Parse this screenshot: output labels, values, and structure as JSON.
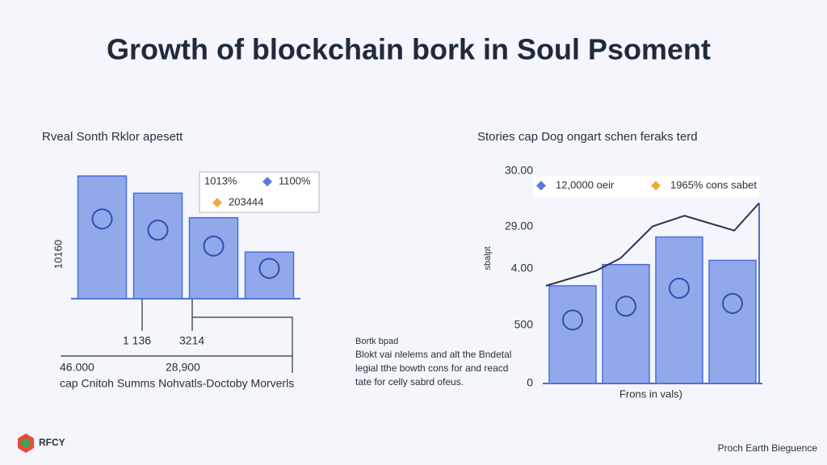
{
  "title": "Growth of blockchain bork in Soul Psoment",
  "logo": "RFCY",
  "footer": "Proch Earth Bieguence",
  "note": {
    "heading": "Bortk bpad",
    "lines": [
      "Blokt vai nlelems and alt the Bndetal",
      "legial tthe bowth cons for and reacd",
      "tate for celly sabrd ofeus."
    ]
  },
  "chart_data": [
    {
      "type": "bar",
      "title": "Rveal Sonth Rklor apesett",
      "ylabel": "10160",
      "categories": [
        null,
        null,
        null,
        null
      ],
      "values": [
        100,
        86,
        66,
        38
      ],
      "color": "#7f9be8",
      "ylim": [
        0,
        100
      ],
      "legend": [
        {
          "label": "1013%",
          "color": null
        },
        {
          "label": "1100%",
          "color": "#5b78d8"
        },
        {
          "label": "203444",
          "color": "#f2a93b"
        }
      ],
      "annotations": [
        "1 136",
        "3214",
        "46.000",
        "28,900"
      ],
      "caption": "cap Cnitoh Summs Nohvatls-Doctoby Morverls"
    },
    {
      "type": "bar",
      "title": "Stories cap Dog ongart schen feraks terd",
      "ylabel": "sbalpt",
      "xlabel": "Frons in vals)",
      "categories": [
        null,
        null,
        null,
        null
      ],
      "values": [
        46,
        56,
        69,
        58
      ],
      "color": "#7f9be8",
      "ylim": [
        0,
        100
      ],
      "y_labels": [
        "30.00",
        "29.00",
        "4.00",
        "500",
        "0"
      ],
      "line": {
        "color": "#2b3550",
        "x": [
          0,
          1.4,
          2.1,
          3,
          3.9,
          5.3,
          6
        ],
        "values": [
          46,
          53,
          59,
          74,
          79,
          72,
          85
        ],
        "xlim": [
          0,
          6
        ]
      },
      "legend": [
        {
          "label": "12,0000 oeir",
          "color": "#5b78d8"
        },
        {
          "label": "1965% cons sabet",
          "color": "#f2a93b"
        }
      ]
    }
  ]
}
